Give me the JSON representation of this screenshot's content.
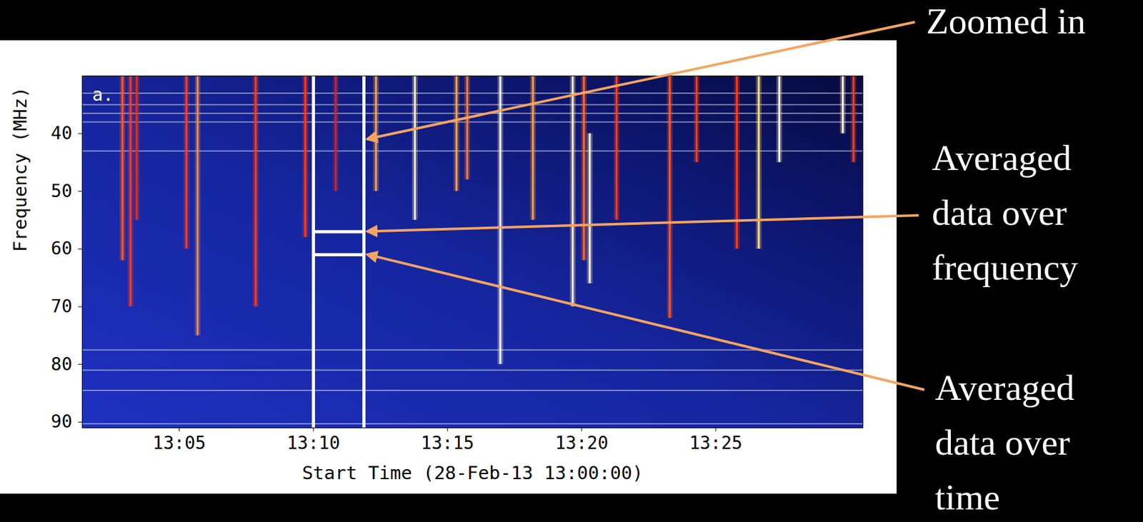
{
  "chart_data": {
    "type": "spectrogram",
    "panel_label": "a.",
    "x_label": "Start Time (28-Feb-13 13:00:00)",
    "y_label": "Frequency (MHz)",
    "xlim": [
      "13:01:23",
      "13:30:29"
    ],
    "ylim": [
      91,
      30
    ],
    "xticks": [
      "13:05",
      "13:10",
      "13:15",
      "13:20",
      "13:25"
    ],
    "yticks": [
      40,
      50,
      60,
      70,
      80,
      90
    ],
    "bursts": {
      "x": [
        "13:02:53",
        "13:03:11",
        "13:03:25",
        "13:05:16",
        "13:05:41",
        "13:07:51",
        "13:09:42",
        "13:10:50",
        "13:12:20",
        "13:13:47",
        "13:15:20",
        "13:15:44",
        "13:16:58",
        "13:18:11",
        "13:19:40",
        "13:20:05",
        "13:20:18",
        "13:21:18",
        "13:23:17",
        "13:24:17",
        "13:25:47",
        "13:26:36",
        "13:27:22",
        "13:29:44",
        "13:30:08"
      ],
      "fmin": [
        30,
        30,
        30,
        30,
        30,
        30,
        30,
        30,
        30,
        30,
        30,
        30,
        30,
        30,
        30,
        30,
        40,
        30,
        30,
        30,
        30,
        30,
        30,
        30,
        30
      ],
      "fmax": [
        62,
        70,
        55,
        60,
        75,
        70,
        58,
        50,
        50,
        55,
        50,
        48,
        80,
        55,
        70,
        62,
        66,
        55,
        72,
        45,
        60,
        60,
        45,
        40,
        45
      ],
      "colors": [
        "#ff5a2a",
        "#ff3b1a",
        "#e0301a",
        "#ff3b1a",
        "#ff8a3a",
        "#ff3b1a",
        "#ff3b1a",
        "#c02a3a",
        "#ffa040",
        "#ffe8b0",
        "#ffa040",
        "#ff7a30",
        "#fff6d5",
        "#ffa040",
        "#fff0c8",
        "#ff6a2a",
        "#fff6d5",
        "#ff3b1a",
        "#ff5a2a",
        "#ff3b1a",
        "#ff3b1a",
        "#ffe070",
        "#fff6d5",
        "#fff6d5",
        "#ff3b1a"
      ]
    },
    "interference": [
      33,
      35,
      36.5,
      38,
      43,
      77.5,
      81,
      84.5,
      90.3
    ],
    "selection": {
      "x": [
        "13:10:00",
        "13:11:53"
      ],
      "y": [
        57,
        61
      ]
    },
    "annotations": [
      {
        "text": "Zoomed in",
        "x": "13:11:53",
        "y": 41
      },
      {
        "text": "Averaged data over frequency",
        "x": "13:11:53",
        "y": 57
      },
      {
        "text": "Averaged data over time",
        "x": "13:11:53",
        "y": 61
      }
    ]
  }
}
